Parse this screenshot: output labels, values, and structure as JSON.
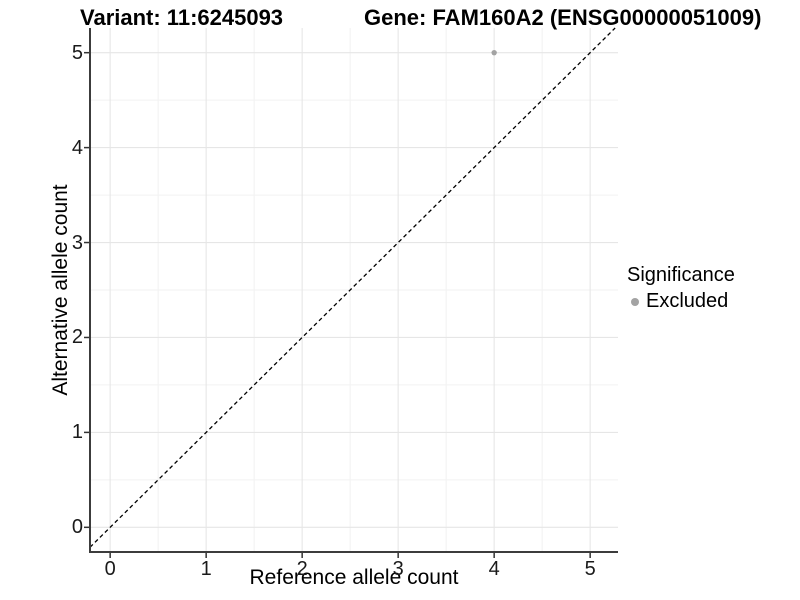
{
  "chart_data": {
    "type": "scatter",
    "titles": [
      "Variant: 11:6245093",
      "Gene: FAM160A2 (ENSG00000051009)"
    ],
    "xlabel": "Reference allele count",
    "ylabel": "Alternative allele count",
    "xticks": [
      0,
      1,
      2,
      3,
      4,
      5
    ],
    "yticks": [
      0,
      1,
      2,
      3,
      4,
      5
    ],
    "xlim": [
      -0.21,
      5.29
    ],
    "ylim": [
      -0.26,
      5.26
    ],
    "grid": "major and minor gridlines on",
    "identity_line": {
      "slope": 1,
      "intercept": 0,
      "linetype": "dashed",
      "color": "#000000"
    },
    "series": [
      {
        "name": "Excluded",
        "color": "#a3a3a3",
        "points": [
          [
            4,
            5
          ]
        ]
      }
    ],
    "legend": {
      "title": "Significance",
      "position": "right",
      "entries": [
        {
          "label": "Excluded",
          "color": "#a3a3a3"
        }
      ]
    }
  },
  "style": {
    "background": "#ffffff",
    "grid_major": "#e6e6e6",
    "grid_minor": "#f2f2f2",
    "axis_line": "#3c3c3c",
    "tick_mark": "#333333",
    "text_color": "#000000"
  }
}
